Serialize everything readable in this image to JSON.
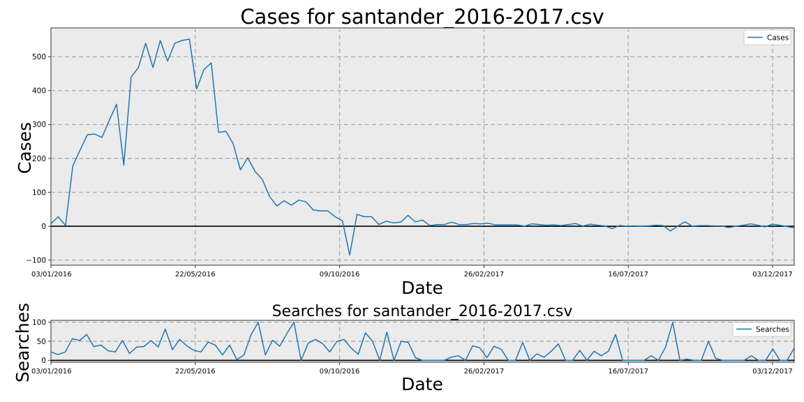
{
  "chart_data": [
    {
      "type": "line",
      "title": "Cases for santander_2016-2017.csv",
      "xlabel": "Date",
      "ylabel": "Cases",
      "x_tick_labels": [
        "03/01/2016",
        "22/05/2016",
        "09/10/2016",
        "26/02/2017",
        "16/07/2017",
        "03/12/2017"
      ],
      "y_ticks": [
        -100,
        0,
        100,
        200,
        300,
        400,
        500
      ],
      "ylim": [
        -115,
        585
      ],
      "xlim_weeks": [
        0,
        103
      ],
      "grid": true,
      "legend_position": "top-right",
      "series": [
        {
          "name": "Cases",
          "color": "#1f77b4",
          "values": [
            8,
            28,
            2,
            178,
            225,
            270,
            272,
            262,
            312,
            360,
            180,
            440,
            468,
            540,
            468,
            548,
            487,
            540,
            548,
            552,
            405,
            462,
            482,
            277,
            280,
            244,
            166,
            202,
            162,
            138,
            88,
            60,
            75,
            62,
            77,
            72,
            48,
            45,
            45,
            28,
            16,
            -85,
            35,
            28,
            28,
            5,
            15,
            10,
            12,
            32,
            13,
            18,
            2,
            5,
            5,
            12,
            5,
            5,
            8,
            7,
            9,
            4,
            4,
            4,
            4,
            0,
            7,
            5,
            3,
            4,
            2,
            5,
            8,
            0,
            6,
            3,
            1,
            -7,
            2,
            0,
            1,
            0,
            1,
            3,
            2,
            -14,
            0,
            13,
            0,
            2,
            2,
            1,
            1,
            -4,
            0,
            3,
            7,
            3,
            -2,
            6,
            3,
            -1,
            -5
          ]
        }
      ]
    },
    {
      "type": "line",
      "title": "Searches for santander_2016-2017.csv",
      "xlabel": "Date",
      "ylabel": "Searches",
      "x_tick_labels": [
        "03/01/2016",
        "22/05/2016",
        "09/10/2016",
        "26/02/2017",
        "16/07/2017",
        "03/12/2017"
      ],
      "y_ticks": [
        0,
        50,
        100
      ],
      "ylim": [
        -5,
        105
      ],
      "xlim_weeks": [
        0,
        103
      ],
      "grid": true,
      "legend_position": "top-right",
      "series": [
        {
          "name": "Searches",
          "color": "#1f77b4",
          "values": [
            22,
            15,
            22,
            57,
            52,
            68,
            36,
            40,
            25,
            22,
            52,
            18,
            35,
            36,
            52,
            35,
            82,
            28,
            55,
            38,
            26,
            22,
            48,
            40,
            14,
            40,
            2,
            14,
            67,
            100,
            14,
            53,
            37,
            70,
            100,
            0,
            45,
            55,
            44,
            22,
            49,
            55,
            32,
            16,
            72,
            50,
            0,
            74,
            0,
            50,
            47,
            7,
            0,
            0,
            0,
            0,
            8,
            12,
            0,
            38,
            33,
            7,
            37,
            29,
            0,
            0,
            47,
            0,
            17,
            8,
            24,
            43,
            0,
            0,
            26,
            0,
            24,
            12,
            24,
            68,
            0,
            0,
            0,
            0,
            12,
            0,
            35,
            100,
            0,
            3,
            0,
            0,
            50,
            5,
            0,
            0,
            0,
            0,
            12,
            0,
            0,
            30,
            0,
            0,
            32
          ]
        }
      ]
    }
  ]
}
